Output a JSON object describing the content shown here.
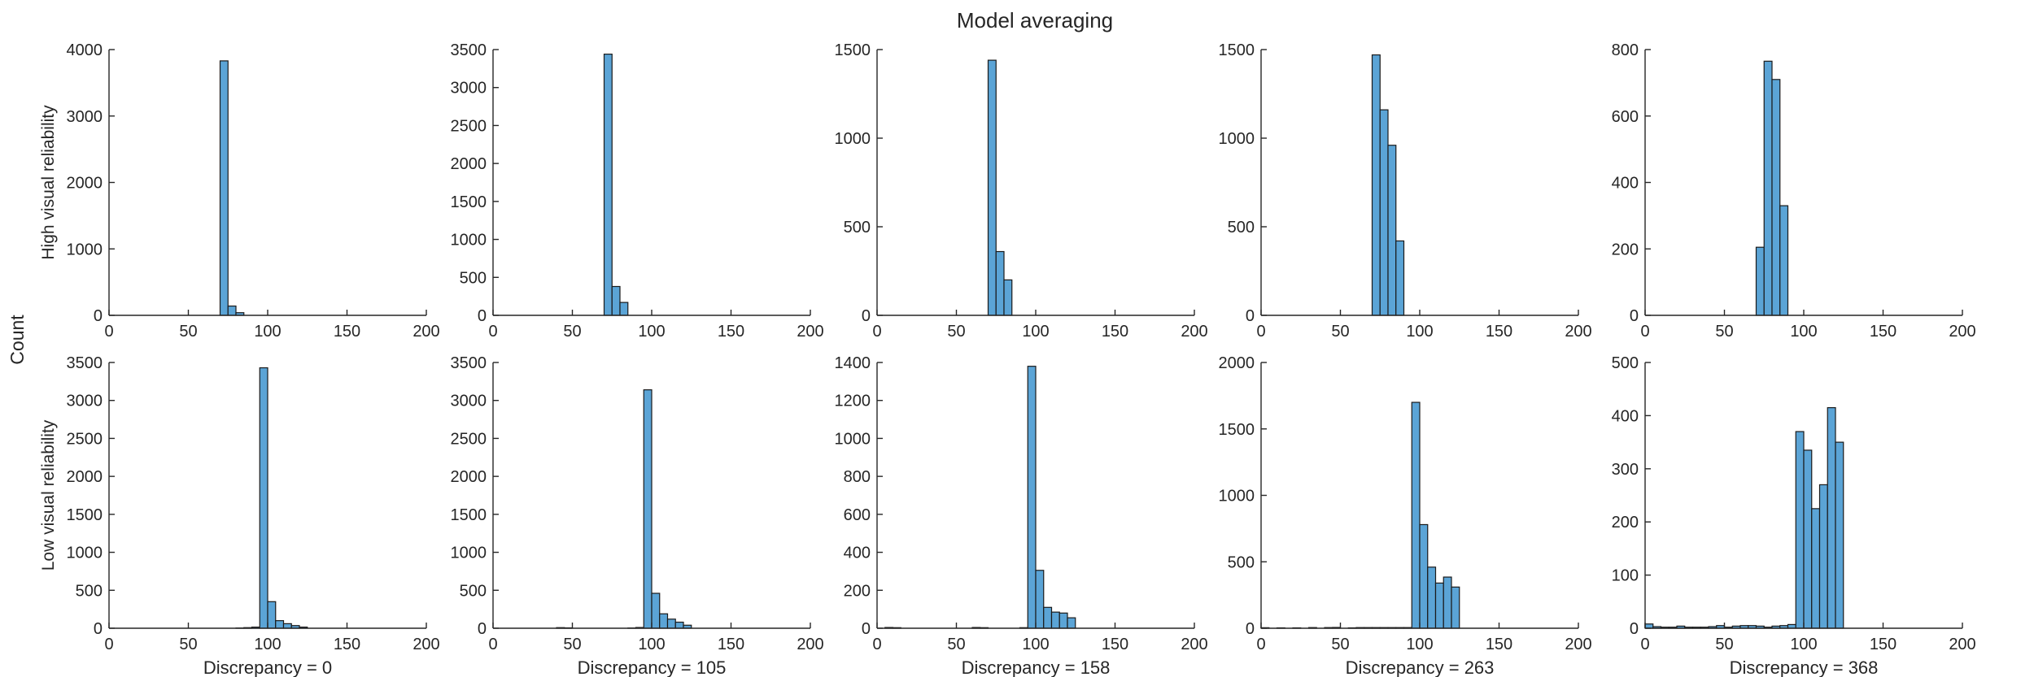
{
  "title": "Model averaging",
  "shared_ylabel": "Count",
  "row_labels": [
    "High visual reliability",
    "Low visual reliability"
  ],
  "bar_color": "#5BA4D6",
  "edge_color": "#1A1A1A",
  "axis_color": "#262626",
  "chart_data": [
    {
      "type": "bar",
      "row": 0,
      "col": 0,
      "xlabel": "",
      "ylabel": "High visual reliability",
      "xlim": [
        0,
        200
      ],
      "ylim": [
        0,
        4000
      ],
      "bin_width": 5,
      "xticks": [
        0,
        50,
        100,
        150,
        200
      ],
      "yticks": [
        0,
        1000,
        2000,
        3000,
        4000
      ],
      "bins": [
        70,
        75,
        80
      ],
      "values": [
        3830,
        140,
        40
      ]
    },
    {
      "type": "bar",
      "row": 0,
      "col": 1,
      "xlabel": "",
      "ylabel": "",
      "xlim": [
        0,
        200
      ],
      "ylim": [
        0,
        3500
      ],
      "bin_width": 5,
      "xticks": [
        0,
        50,
        100,
        150,
        200
      ],
      "yticks": [
        0,
        500,
        1000,
        1500,
        2000,
        2500,
        3000,
        3500
      ],
      "bins": [
        70,
        75,
        80
      ],
      "values": [
        3440,
        380,
        170
      ]
    },
    {
      "type": "bar",
      "row": 0,
      "col": 2,
      "xlabel": "",
      "ylabel": "",
      "xlim": [
        0,
        200
      ],
      "ylim": [
        0,
        1500
      ],
      "bin_width": 5,
      "xticks": [
        0,
        50,
        100,
        150,
        200
      ],
      "yticks": [
        0,
        500,
        1000,
        1500
      ],
      "bins": [
        70,
        75,
        80
      ],
      "values": [
        1440,
        360,
        200
      ]
    },
    {
      "type": "bar",
      "row": 0,
      "col": 3,
      "xlabel": "",
      "ylabel": "",
      "xlim": [
        0,
        200
      ],
      "ylim": [
        0,
        1500
      ],
      "bin_width": 5,
      "xticks": [
        0,
        50,
        100,
        150,
        200
      ],
      "yticks": [
        0,
        500,
        1000,
        1500
      ],
      "bins": [
        70,
        75,
        80,
        85
      ],
      "values": [
        1470,
        1160,
        960,
        420
      ]
    },
    {
      "type": "bar",
      "row": 0,
      "col": 4,
      "xlabel": "",
      "ylabel": "",
      "xlim": [
        0,
        200
      ],
      "ylim": [
        0,
        800
      ],
      "bin_width": 5,
      "xticks": [
        0,
        50,
        100,
        150,
        200
      ],
      "yticks": [
        0,
        200,
        400,
        600,
        800
      ],
      "bins": [
        70,
        75,
        80,
        85
      ],
      "values": [
        205,
        765,
        710,
        330
      ]
    },
    {
      "type": "bar",
      "row": 1,
      "col": 0,
      "xlabel": "Discrepancy = 0",
      "ylabel": "Low visual reliability",
      "xlim": [
        0,
        200
      ],
      "ylim": [
        0,
        3500
      ],
      "bin_width": 5,
      "xticks": [
        0,
        50,
        100,
        150,
        200
      ],
      "yticks": [
        0,
        500,
        1000,
        1500,
        2000,
        2500,
        3000,
        3500
      ],
      "bins": [
        80,
        85,
        90,
        95,
        100,
        105,
        110,
        115,
        120
      ],
      "values": [
        3,
        8,
        15,
        3430,
        350,
        100,
        60,
        35,
        15
      ]
    },
    {
      "type": "bar",
      "row": 1,
      "col": 1,
      "xlabel": "Discrepancy = 105",
      "ylabel": "",
      "xlim": [
        0,
        200
      ],
      "ylim": [
        0,
        3500
      ],
      "bin_width": 5,
      "xticks": [
        0,
        50,
        100,
        150,
        200
      ],
      "yticks": [
        0,
        500,
        1000,
        1500,
        2000,
        2500,
        3000,
        3500
      ],
      "bins": [
        40,
        45,
        85,
        90,
        95,
        100,
        105,
        110,
        115,
        120
      ],
      "values": [
        8,
        5,
        3,
        10,
        3140,
        460,
        190,
        120,
        80,
        40
      ]
    },
    {
      "type": "bar",
      "row": 1,
      "col": 2,
      "xlabel": "Discrepancy = 158",
      "ylabel": "",
      "xlim": [
        0,
        200
      ],
      "ylim": [
        0,
        1400
      ],
      "bin_width": 5,
      "xticks": [
        0,
        50,
        100,
        150,
        200
      ],
      "yticks": [
        0,
        200,
        400,
        600,
        800,
        1000,
        1200,
        1400
      ],
      "bins": [
        5,
        10,
        60,
        65,
        90,
        95,
        100,
        105,
        110,
        115,
        120
      ],
      "values": [
        4,
        3,
        4,
        3,
        3,
        1380,
        305,
        110,
        85,
        80,
        55
      ]
    },
    {
      "type": "bar",
      "row": 1,
      "col": 3,
      "xlabel": "Discrepancy = 263",
      "ylabel": "",
      "xlim": [
        0,
        200
      ],
      "ylim": [
        0,
        2000
      ],
      "bin_width": 5,
      "xticks": [
        0,
        50,
        100,
        150,
        200
      ],
      "yticks": [
        0,
        500,
        1000,
        1500,
        2000
      ],
      "bins": [
        0,
        10,
        20,
        30,
        40,
        45,
        55,
        60,
        65,
        70,
        75,
        80,
        85,
        90,
        95,
        100,
        105,
        110,
        115,
        120
      ],
      "values": [
        4,
        3,
        3,
        5,
        5,
        6,
        3,
        5,
        5,
        5,
        5,
        5,
        5,
        5,
        1700,
        780,
        460,
        340,
        385,
        310
      ]
    },
    {
      "type": "bar",
      "row": 1,
      "col": 4,
      "xlabel": "Discrepancy = 368",
      "ylabel": "",
      "xlim": [
        0,
        200
      ],
      "ylim": [
        0,
        500
      ],
      "bin_width": 5,
      "xticks": [
        0,
        50,
        100,
        150,
        200
      ],
      "yticks": [
        0,
        100,
        200,
        300,
        400,
        500
      ],
      "bins": [
        0,
        5,
        10,
        15,
        20,
        25,
        30,
        35,
        40,
        45,
        50,
        55,
        60,
        65,
        70,
        75,
        80,
        85,
        90,
        95,
        100,
        105,
        110,
        115,
        120
      ],
      "values": [
        8,
        3,
        2,
        2,
        4,
        2,
        2,
        2,
        3,
        5,
        2,
        4,
        5,
        5,
        4,
        2,
        4,
        5,
        7,
        370,
        335,
        225,
        270,
        415,
        350
      ]
    }
  ]
}
